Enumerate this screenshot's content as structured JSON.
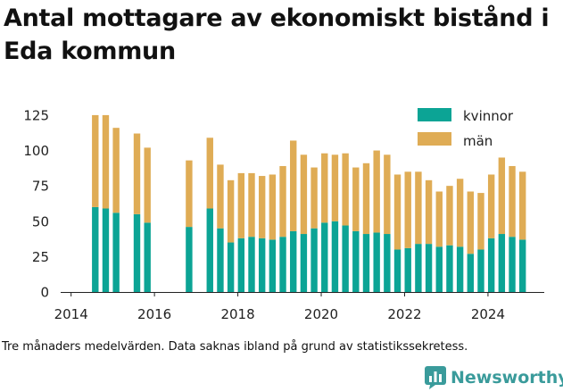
{
  "title": "Antal mottagare av ekonomiskt bistånd i Eda kommun",
  "footnote": "Tre månaders medelvärden. Data saknas ibland på grund av statistikssekretess.",
  "brand": {
    "name": "Newsworthy",
    "icon": "newsworthy-logo-icon",
    "color": "#3a9b9b"
  },
  "colors": {
    "kvinnor": "#0ca495",
    "man": "#dfac55",
    "axis": "#222222",
    "grid": "#dddddd"
  },
  "chart_data": {
    "type": "bar",
    "stacked": true,
    "title": "Antal mottagare av ekonomiskt bistånd i Eda kommun",
    "xlabel": "",
    "ylabel": "",
    "ylim": [
      0,
      130
    ],
    "xlim": [
      2013.75,
      2025.35
    ],
    "yticks": [
      0,
      25,
      50,
      75,
      100,
      125
    ],
    "xticks": [
      "2014",
      "2016",
      "2018",
      "2020",
      "2022",
      "2024"
    ],
    "xtick_values": [
      2014,
      2016,
      2018,
      2020,
      2022,
      2024
    ],
    "grid": false,
    "legend_position": "top-right",
    "x": [
      2014.58,
      2014.83,
      2015.08,
      2015.58,
      2015.83,
      2016.83,
      2017.33,
      2017.58,
      2017.83,
      2018.08,
      2018.33,
      2018.58,
      2018.83,
      2019.08,
      2019.33,
      2019.58,
      2019.83,
      2020.08,
      2020.33,
      2020.58,
      2020.83,
      2021.08,
      2021.33,
      2021.58,
      2021.83,
      2022.08,
      2022.33,
      2022.58,
      2022.83,
      2023.08,
      2023.33,
      2023.58,
      2023.83,
      2024.08,
      2024.33,
      2024.58,
      2024.83
    ],
    "series": [
      {
        "name": "kvinnor",
        "values": [
          60,
          59,
          56,
          55,
          49,
          46,
          59,
          45,
          35,
          38,
          39,
          38,
          37,
          39,
          43,
          41,
          45,
          49,
          50,
          47,
          43,
          41,
          42,
          41,
          30,
          31,
          34,
          34,
          32,
          33,
          32,
          27,
          30,
          38,
          41,
          39,
          37
        ]
      },
      {
        "name": "män",
        "values": [
          65,
          66,
          60,
          57,
          53,
          47,
          50,
          45,
          44,
          46,
          45,
          44,
          46,
          50,
          64,
          56,
          43,
          49,
          47,
          51,
          45,
          50,
          58,
          56,
          53,
          54,
          51,
          45,
          39,
          42,
          48,
          44,
          40,
          45,
          54,
          50,
          48
        ]
      }
    ]
  }
}
